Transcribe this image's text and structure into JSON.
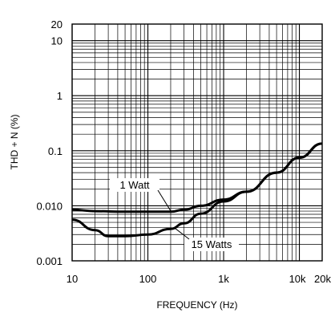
{
  "chart_data": {
    "type": "line",
    "xlabel": "FREQUENCY (Hz)",
    "ylabel": "THD + N (%)",
    "x_scale": "log",
    "y_scale": "log",
    "xlim": [
      10,
      20000
    ],
    "ylim": [
      0.001,
      20
    ],
    "grid": true,
    "x_ticks": [
      {
        "value": 10,
        "label": "10"
      },
      {
        "value": 100,
        "label": "100"
      },
      {
        "value": 1000,
        "label": "1k"
      },
      {
        "value": 10000,
        "label": "10k"
      },
      {
        "value": 20000,
        "label": "20k"
      }
    ],
    "y_ticks": [
      {
        "value": 0.001,
        "label": "0.001"
      },
      {
        "value": 0.01,
        "label": "0.010"
      },
      {
        "value": 0.1,
        "label": "0.1"
      },
      {
        "value": 1,
        "label": "1"
      },
      {
        "value": 10,
        "label": "10"
      },
      {
        "value": 20,
        "label": "20"
      }
    ],
    "series": [
      {
        "name": "1 Watt",
        "x": [
          10,
          20,
          50,
          100,
          200,
          300,
          500,
          1000,
          2000,
          5000,
          10000,
          20000
        ],
        "y": [
          0.0085,
          0.008,
          0.0078,
          0.0078,
          0.0078,
          0.0085,
          0.01,
          0.013,
          0.018,
          0.04,
          0.075,
          0.135
        ]
      },
      {
        "name": "15 Watts",
        "x": [
          10,
          20,
          30,
          50,
          100,
          200,
          300,
          500,
          1000,
          2000,
          5000,
          10000,
          20000
        ],
        "y": [
          0.0056,
          0.0036,
          0.0028,
          0.0028,
          0.003,
          0.0038,
          0.0048,
          0.0072,
          0.012,
          0.018,
          0.04,
          0.075,
          0.135
        ]
      }
    ]
  }
}
